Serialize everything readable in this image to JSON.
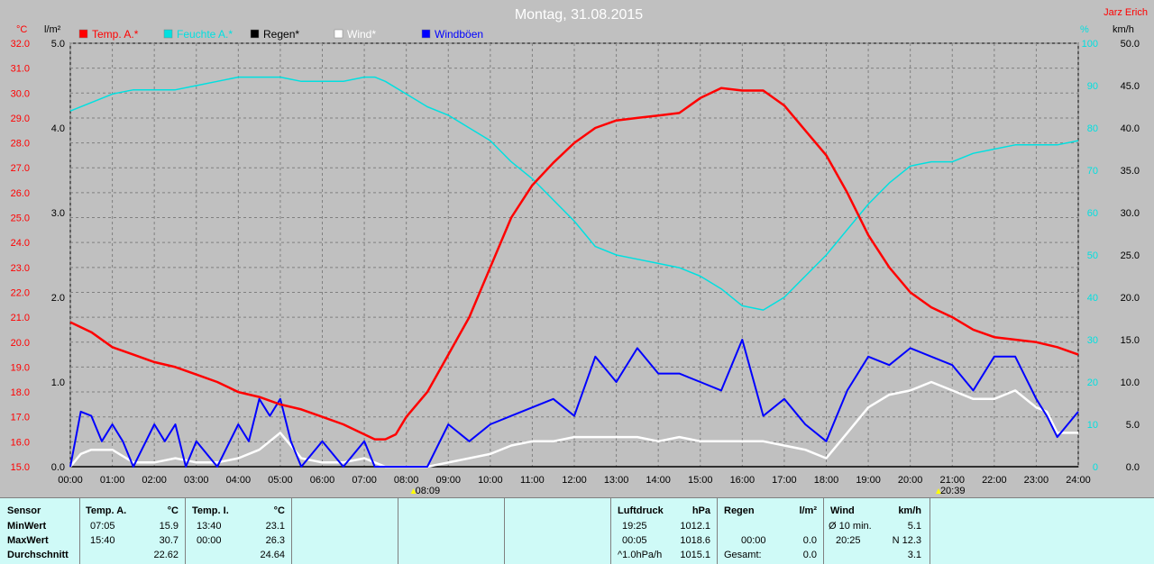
{
  "title": "Montag, 31.08.2015",
  "author": "Jarz Erich",
  "units": {
    "left_temp": "°C",
    "left_rain": "l/m²",
    "right_pct": "%",
    "right_wind": "km/h"
  },
  "colors": {
    "temp": "#ff0000",
    "humidity": "#00e0e0",
    "rain": "#000000",
    "wind": "#ffffff",
    "gust": "#0000ff",
    "title": "#ffffff",
    "grid": "#808080"
  },
  "chart_data": {
    "type": "line",
    "x_label_ticks": [
      "00:00",
      "01:00",
      "02:00",
      "03:00",
      "04:00",
      "05:00",
      "06:00",
      "07:00",
      "08:00",
      "09:00",
      "10:00",
      "11:00",
      "12:00",
      "13:00",
      "14:00",
      "15:00",
      "16:00",
      "17:00",
      "18:00",
      "19:00",
      "20:00",
      "21:00",
      "22:00",
      "23:00",
      "24:00"
    ],
    "xlim": [
      0,
      24
    ],
    "axes": {
      "temp": {
        "ylim": [
          15.0,
          32.0
        ],
        "ticks": [
          "15.0",
          "16.0",
          "17.0",
          "18.0",
          "19.0",
          "20.0",
          "21.0",
          "22.0",
          "23.0",
          "24.0",
          "25.0",
          "26.0",
          "27.0",
          "28.0",
          "29.0",
          "30.0",
          "31.0",
          "32.0"
        ]
      },
      "rain": {
        "ylim": [
          0.0,
          5.0
        ],
        "ticks": [
          "0.0",
          "1.0",
          "2.0",
          "3.0",
          "4.0",
          "5.0"
        ]
      },
      "humidity": {
        "ylim": [
          0,
          100
        ],
        "ticks": [
          "0",
          "10",
          "20",
          "30",
          "40",
          "50",
          "60",
          "70",
          "80",
          "90",
          "100"
        ]
      },
      "wind": {
        "ylim": [
          0.0,
          50.0
        ],
        "ticks": [
          "0.0",
          "5.0",
          "10.0",
          "15.0",
          "20.0",
          "25.0",
          "30.0",
          "35.0",
          "40.0",
          "45.0",
          "50.0"
        ]
      }
    },
    "series": [
      {
        "name": "Temp. A.*",
        "axis": "temp",
        "points": [
          [
            0,
            20.8
          ],
          [
            0.5,
            20.4
          ],
          [
            1,
            19.8
          ],
          [
            1.5,
            19.5
          ],
          [
            2,
            19.2
          ],
          [
            2.5,
            19.0
          ],
          [
            3,
            18.7
          ],
          [
            3.5,
            18.4
          ],
          [
            4,
            18.0
          ],
          [
            4.5,
            17.8
          ],
          [
            5,
            17.5
          ],
          [
            5.5,
            17.3
          ],
          [
            6,
            17.0
          ],
          [
            6.5,
            16.7
          ],
          [
            7,
            16.3
          ],
          [
            7.25,
            16.1
          ],
          [
            7.5,
            16.1
          ],
          [
            7.75,
            16.3
          ],
          [
            8,
            17.0
          ],
          [
            8.5,
            18.0
          ],
          [
            9,
            19.5
          ],
          [
            9.5,
            21.0
          ],
          [
            10,
            23.0
          ],
          [
            10.5,
            25.0
          ],
          [
            11,
            26.3
          ],
          [
            11.5,
            27.2
          ],
          [
            12,
            28.0
          ],
          [
            12.5,
            28.6
          ],
          [
            13,
            28.9
          ],
          [
            13.5,
            29.0
          ],
          [
            14,
            29.1
          ],
          [
            14.5,
            29.2
          ],
          [
            15,
            29.8
          ],
          [
            15.5,
            30.2
          ],
          [
            16,
            30.1
          ],
          [
            16.5,
            30.1
          ],
          [
            17,
            29.5
          ],
          [
            17.5,
            28.5
          ],
          [
            18,
            27.5
          ],
          [
            18.5,
            26.0
          ],
          [
            19,
            24.3
          ],
          [
            19.5,
            23.0
          ],
          [
            20,
            22.0
          ],
          [
            20.5,
            21.4
          ],
          [
            21,
            21.0
          ],
          [
            21.5,
            20.5
          ],
          [
            22,
            20.2
          ],
          [
            22.5,
            20.1
          ],
          [
            23,
            20.0
          ],
          [
            23.5,
            19.8
          ],
          [
            24,
            19.5
          ]
        ]
      },
      {
        "name": "Feuchte A.*",
        "axis": "humidity",
        "points": [
          [
            0,
            84
          ],
          [
            0.5,
            86
          ],
          [
            1,
            88
          ],
          [
            1.5,
            89
          ],
          [
            2,
            89
          ],
          [
            2.5,
            89
          ],
          [
            3,
            90
          ],
          [
            3.5,
            91
          ],
          [
            4,
            92
          ],
          [
            4.5,
            92
          ],
          [
            5,
            92
          ],
          [
            5.5,
            91
          ],
          [
            6,
            91
          ],
          [
            6.5,
            91
          ],
          [
            7,
            92
          ],
          [
            7.25,
            92
          ],
          [
            7.5,
            91
          ],
          [
            8,
            88
          ],
          [
            8.5,
            85
          ],
          [
            9,
            83
          ],
          [
            9.5,
            80
          ],
          [
            10,
            77
          ],
          [
            10.5,
            72
          ],
          [
            11,
            68
          ],
          [
            11.5,
            63
          ],
          [
            12,
            58
          ],
          [
            12.5,
            52
          ],
          [
            13,
            50
          ],
          [
            13.5,
            49
          ],
          [
            14,
            48
          ],
          [
            14.5,
            47
          ],
          [
            15,
            45
          ],
          [
            15.5,
            42
          ],
          [
            16,
            38
          ],
          [
            16.5,
            37
          ],
          [
            17,
            40
          ],
          [
            17.5,
            45
          ],
          [
            18,
            50
          ],
          [
            18.5,
            56
          ],
          [
            19,
            62
          ],
          [
            19.5,
            67
          ],
          [
            20,
            71
          ],
          [
            20.5,
            72
          ],
          [
            21,
            72
          ],
          [
            21.5,
            74
          ],
          [
            22,
            75
          ],
          [
            22.5,
            76
          ],
          [
            23,
            76
          ],
          [
            23.5,
            76
          ],
          [
            24,
            77
          ]
        ]
      },
      {
        "name": "Regen*",
        "axis": "rain",
        "points": [
          [
            0,
            0
          ],
          [
            24,
            0
          ]
        ]
      },
      {
        "name": "Wind*",
        "axis": "wind",
        "points": [
          [
            0,
            0
          ],
          [
            0.25,
            1.5
          ],
          [
            0.5,
            2
          ],
          [
            1,
            2
          ],
          [
            1.5,
            0.5
          ],
          [
            2,
            0.5
          ],
          [
            2.5,
            1
          ],
          [
            3,
            0.5
          ],
          [
            3.5,
            0.5
          ],
          [
            4,
            1
          ],
          [
            4.5,
            2
          ],
          [
            5,
            4
          ],
          [
            5.5,
            1
          ],
          [
            6,
            0.5
          ],
          [
            6.5,
            0.5
          ],
          [
            7,
            1
          ],
          [
            7.25,
            0.5
          ],
          [
            7.5,
            0
          ],
          [
            8,
            0
          ],
          [
            8.5,
            0
          ],
          [
            9,
            0.5
          ],
          [
            9.5,
            1
          ],
          [
            10,
            1.5
          ],
          [
            10.5,
            2.5
          ],
          [
            11,
            3
          ],
          [
            11.5,
            3
          ],
          [
            12,
            3.5
          ],
          [
            12.5,
            3.5
          ],
          [
            13,
            3.5
          ],
          [
            13.5,
            3.5
          ],
          [
            14,
            3
          ],
          [
            14.5,
            3.5
          ],
          [
            15,
            3
          ],
          [
            15.5,
            3
          ],
          [
            16,
            3
          ],
          [
            16.5,
            3
          ],
          [
            17,
            2.5
          ],
          [
            17.5,
            2
          ],
          [
            18,
            1
          ],
          [
            18.5,
            4
          ],
          [
            19,
            7
          ],
          [
            19.5,
            8.5
          ],
          [
            20,
            9
          ],
          [
            20.5,
            10
          ],
          [
            21,
            9
          ],
          [
            21.5,
            8
          ],
          [
            22,
            8
          ],
          [
            22.5,
            9
          ],
          [
            23,
            7
          ],
          [
            23.25,
            6.5
          ],
          [
            23.5,
            4
          ],
          [
            24,
            4
          ]
        ]
      },
      {
        "name": "Windböen",
        "axis": "wind",
        "points": [
          [
            0,
            0
          ],
          [
            0.25,
            6.5
          ],
          [
            0.5,
            6
          ],
          [
            0.75,
            3
          ],
          [
            1,
            5
          ],
          [
            1.25,
            3
          ],
          [
            1.5,
            0
          ],
          [
            2,
            5
          ],
          [
            2.25,
            3
          ],
          [
            2.5,
            5
          ],
          [
            2.75,
            0
          ],
          [
            3,
            3
          ],
          [
            3.5,
            0
          ],
          [
            4,
            5
          ],
          [
            4.25,
            3
          ],
          [
            4.5,
            8
          ],
          [
            4.75,
            6
          ],
          [
            5,
            8
          ],
          [
            5.25,
            3
          ],
          [
            5.5,
            0
          ],
          [
            6,
            3
          ],
          [
            6.5,
            0
          ],
          [
            7,
            3
          ],
          [
            7.25,
            0
          ],
          [
            7.5,
            0
          ],
          [
            8,
            0
          ],
          [
            8.5,
            0
          ],
          [
            9,
            5
          ],
          [
            9.5,
            3
          ],
          [
            10,
            5
          ],
          [
            10.5,
            6
          ],
          [
            11,
            7
          ],
          [
            11.5,
            8
          ],
          [
            12,
            6
          ],
          [
            12.5,
            13
          ],
          [
            13,
            10
          ],
          [
            13.5,
            14
          ],
          [
            14,
            11
          ],
          [
            14.5,
            11
          ],
          [
            15,
            10
          ],
          [
            15.5,
            9
          ],
          [
            16,
            15
          ],
          [
            16.5,
            6
          ],
          [
            17,
            8
          ],
          [
            17.5,
            5
          ],
          [
            18,
            3
          ],
          [
            18.5,
            9
          ],
          [
            19,
            13
          ],
          [
            19.5,
            12
          ],
          [
            20,
            14
          ],
          [
            20.5,
            13
          ],
          [
            21,
            12
          ],
          [
            21.5,
            9
          ],
          [
            22,
            13
          ],
          [
            22.5,
            13
          ],
          [
            23,
            8
          ],
          [
            23.25,
            6
          ],
          [
            23.5,
            3.5
          ],
          [
            24,
            6.5
          ]
        ]
      }
    ],
    "markers": [
      {
        "x": 8.15,
        "label": "08:09"
      },
      {
        "x": 20.65,
        "label": "20:39"
      }
    ],
    "grid": true,
    "legend_placement": "top"
  },
  "table": {
    "sensor": {
      "header": "Sensor",
      "rows": [
        "MinWert",
        "MaxWert",
        "Durchschnitt"
      ]
    },
    "temp_a": {
      "header": "Temp. A.",
      "unit": "°C",
      "times": [
        "07:05",
        "15:40",
        ""
      ],
      "values": [
        "15.9",
        "30.7",
        "22.62"
      ]
    },
    "temp_i": {
      "header": "Temp. I.",
      "unit": "°C",
      "times": [
        "13:40",
        "00:00",
        ""
      ],
      "values": [
        "23.1",
        "26.3",
        "24.64"
      ]
    },
    "luftdruck": {
      "header": "Luftdruck",
      "unit": "hPa",
      "times": [
        "19:25",
        "00:05",
        "^1.0hPa/h"
      ],
      "values": [
        "1012.1",
        "1018.6",
        "1015.1"
      ]
    },
    "regen": {
      "header": "Regen",
      "unit": "l/m²",
      "times": [
        "",
        "00:00",
        "Gesamt:"
      ],
      "values": [
        "",
        "0.0",
        "0.0"
      ]
    },
    "wind": {
      "header": "Wind",
      "unit": "km/h",
      "times": [
        "Ø 10 min.",
        "20:25",
        ""
      ],
      "values": [
        "5.1",
        "N 12.3",
        "3.1"
      ]
    }
  }
}
